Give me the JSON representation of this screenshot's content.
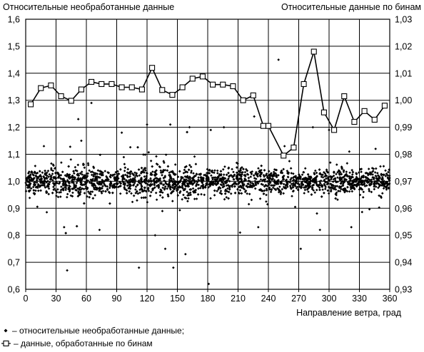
{
  "chart_data": {
    "type": "scatter",
    "ylabel_left": "Относительные необработанные данные",
    "ylabel_right": "Относительные данные по бинам",
    "xlabel": "Направление ветра, град",
    "xlim": [
      0,
      360
    ],
    "ylim_left": [
      0.6,
      1.6
    ],
    "ylim_right": [
      0.93,
      1.03
    ],
    "x_ticks": [
      "0",
      "30",
      "60",
      "90",
      "120",
      "150",
      "180",
      "210",
      "240",
      "270",
      "300",
      "330",
      "360"
    ],
    "y_ticks_left": [
      "0,6",
      "0,7",
      "0,8",
      "0,9",
      "1,0",
      "1,1",
      "1,2",
      "1,3",
      "1,4",
      "1,5",
      "1,6"
    ],
    "y_ticks_right": [
      "0,93",
      "0,94",
      "0,95",
      "0,96",
      "0,97",
      "0,98",
      "0,99",
      "1,00",
      "1,01",
      "1,02",
      "1,03"
    ],
    "grid": true,
    "legend_position": "bottom-left",
    "series": [
      {
        "name": "– относительные необработанные данные;",
        "axis": "left",
        "marker": "diamond",
        "color": "#000000",
        "center": 1.0,
        "spread": 0.03,
        "note_points": [
          {
            "x": 18,
            "y": 1.13
          },
          {
            "x": 30,
            "y": 1.1
          },
          {
            "x": 41,
            "y": 0.67
          },
          {
            "x": 38,
            "y": 0.83
          },
          {
            "x": 52,
            "y": 1.23
          },
          {
            "x": 55,
            "y": 1.15
          },
          {
            "x": 65,
            "y": 1.29
          },
          {
            "x": 73,
            "y": 0.82
          },
          {
            "x": 112,
            "y": 0.68
          },
          {
            "x": 120,
            "y": 1.21
          },
          {
            "x": 128,
            "y": 0.8
          },
          {
            "x": 138,
            "y": 0.75
          },
          {
            "x": 143,
            "y": 1.21
          },
          {
            "x": 146,
            "y": 0.68
          },
          {
            "x": 158,
            "y": 0.73
          },
          {
            "x": 162,
            "y": 1.2
          },
          {
            "x": 181,
            "y": 0.62
          },
          {
            "x": 183,
            "y": 1.19
          },
          {
            "x": 226,
            "y": 1.24
          },
          {
            "x": 230,
            "y": 0.83
          },
          {
            "x": 250,
            "y": 1.45
          },
          {
            "x": 256,
            "y": 1.13
          },
          {
            "x": 272,
            "y": 0.75
          },
          {
            "x": 284,
            "y": 1.2
          },
          {
            "x": 291,
            "y": 0.82
          },
          {
            "x": 300,
            "y": 1.19
          },
          {
            "x": 322,
            "y": 0.83
          },
          {
            "x": 320,
            "y": 1.11
          },
          {
            "x": 346,
            "y": 1.12
          },
          {
            "x": 212,
            "y": 0.81
          },
          {
            "x": 95,
            "y": 1.18
          },
          {
            "x": 196,
            "y": 1.2
          }
        ]
      },
      {
        "name": "– данные, обработанные по бинам",
        "axis": "right",
        "marker": "square",
        "color": "#000000",
        "x": [
          5,
          15,
          25,
          35,
          45,
          55,
          65,
          75,
          85,
          95,
          105,
          115,
          125,
          135,
          145,
          155,
          165,
          175,
          185,
          195,
          205,
          215,
          225,
          235,
          240,
          255,
          265,
          275,
          285,
          295,
          305,
          315,
          325,
          335,
          345,
          355
        ],
        "y": [
          0.9985,
          1.0045,
          1.0055,
          1.0015,
          0.9998,
          1.004,
          1.0068,
          1.006,
          1.006,
          1.0048,
          1.0048,
          1.004,
          1.012,
          1.0038,
          1.002,
          1.0048,
          1.008,
          1.0088,
          1.0058,
          1.0058,
          1.0052,
          1.0,
          1.0018,
          0.9905,
          0.9905,
          0.9795,
          0.9825,
          1.006,
          1.018,
          0.9955,
          0.989,
          1.0015,
          0.992,
          0.996,
          0.9928,
          0.998
        ]
      }
    ]
  }
}
